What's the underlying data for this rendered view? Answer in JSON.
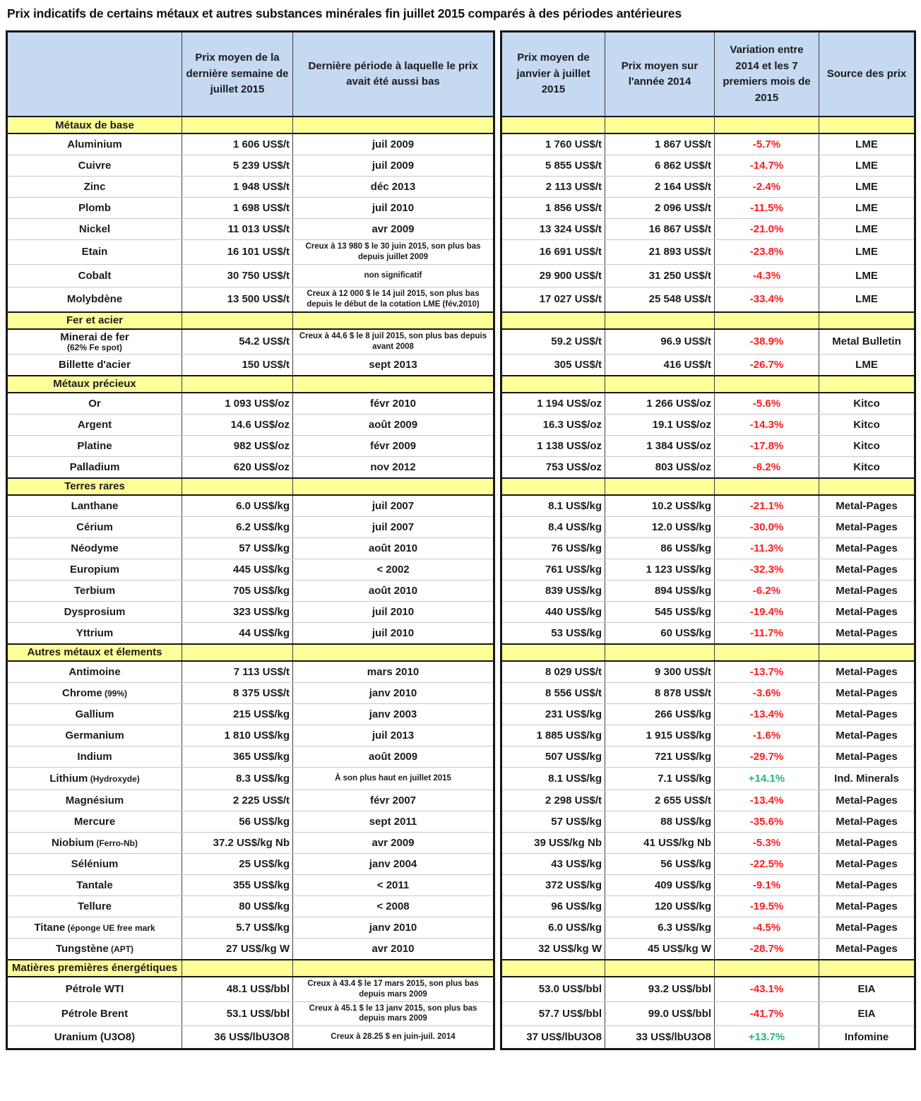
{
  "title": "Prix indicatifs de certains métaux et autres substances minérales fin juillet 2015 comparés à des périodes antérieures",
  "colors": {
    "header_blue": "#c5d9f1",
    "section_yellow": "#ffff99",
    "variation_negative_red": "#fe1b1d",
    "variation_positive_green": "#29b578"
  },
  "chart_data": {
    "type": "table",
    "title": "Prix indicatifs de certains métaux et autres substances minérales fin juillet 2015 comparés à des périodes antérieures",
    "columns": [
      "",
      "Prix moyen de la dernière semaine de juillet 2015",
      "Dernière période à laquelle le prix avait été aussi bas",
      "Prix moyen de janvier à juillet 2015",
      "Prix moyen sur l'année 2014",
      "Variation entre 2014 et les 7 premiers mois de 2015",
      "Source des prix"
    ],
    "sections": [
      {
        "name": "Métaux de base",
        "rows": [
          {
            "label": "Aluminium",
            "w": "1 606 US$/t",
            "period": "juil 2009",
            "p15": "1 760 US$/t",
            "p14": "1 867 US$/t",
            "var": "-5.7%",
            "pos": false,
            "src": "LME"
          },
          {
            "label": "Cuivre",
            "w": "5 239 US$/t",
            "period": "juil 2009",
            "p15": "5 855 US$/t",
            "p14": "6 862 US$/t",
            "var": "-14.7%",
            "pos": false,
            "src": "LME"
          },
          {
            "label": "Zinc",
            "w": "1 948 US$/t",
            "period": "déc 2013",
            "p15": "2 113 US$/t",
            "p14": "2 164 US$/t",
            "var": "-2.4%",
            "pos": false,
            "src": "LME"
          },
          {
            "label": "Plomb",
            "w": "1 698 US$/t",
            "period": "juil 2010",
            "p15": "1 856 US$/t",
            "p14": "2 096 US$/t",
            "var": "-11.5%",
            "pos": false,
            "src": "LME"
          },
          {
            "label": "Nickel",
            "w": "11 013 US$/t",
            "period": "avr 2009",
            "p15": "13 324 US$/t",
            "p14": "16 867 US$/t",
            "var": "-21.0%",
            "pos": false,
            "src": "LME"
          },
          {
            "label": "Etain",
            "w": "16 101 US$/t",
            "period": "Creux à 13 980 $ le 30 juin 2015, son plus bas depuis juillet 2009",
            "ps": true,
            "p15": "16 691 US$/t",
            "p14": "21 893 US$/t",
            "var": "-23.8%",
            "pos": false,
            "src": "LME"
          },
          {
            "label": "Cobalt",
            "w": "30 750 US$/t",
            "period": "non significatif",
            "ps": true,
            "p15": "29 900 US$/t",
            "p14": "31 250 US$/t",
            "var": "-4.3%",
            "pos": false,
            "src": "LME"
          },
          {
            "label": "Molybdène",
            "w": "13 500 US$/t",
            "period": "Creux à 12 000 $ le 14 juil 2015, son plus bas depuis le début de la cotation LME (fév.2010)",
            "ps": true,
            "p15": "17 027 US$/t",
            "p14": "25 548 US$/t",
            "var": "-33.4%",
            "pos": false,
            "src": "LME"
          }
        ]
      },
      {
        "name": "Fer et acier",
        "rows": [
          {
            "label": "Minerai de fer",
            "sub": "(62% Fe spot)",
            "w": "54.2 US$/t",
            "period": "Creux à 44.6 $ le 8 juil 2015, son plus bas depuis avant 2008",
            "ps": true,
            "p15": "59.2 US$/t",
            "p14": "96.9 US$/t",
            "var": "-38.9%",
            "pos": false,
            "src": "Metal Bulletin"
          },
          {
            "label": "Billette d'acier",
            "w": "150 US$/t",
            "period": "sept 2013",
            "p15": "305 US$/t",
            "p14": "416 US$/t",
            "var": "-26.7%",
            "pos": false,
            "src": "LME"
          }
        ]
      },
      {
        "name": "Métaux précieux",
        "rows": [
          {
            "label": "Or",
            "w": "1 093 US$/oz",
            "period": "févr 2010",
            "p15": "1 194 US$/oz",
            "p14": "1 266 US$/oz",
            "var": "-5.6%",
            "pos": false,
            "src": "Kitco"
          },
          {
            "label": "Argent",
            "w": "14.6 US$/oz",
            "period": "août 2009",
            "p15": "16.3 US$/oz",
            "p14": "19.1 US$/oz",
            "var": "-14.3%",
            "pos": false,
            "src": "Kitco"
          },
          {
            "label": "Platine",
            "w": "982 US$/oz",
            "period": "févr 2009",
            "p15": "1 138 US$/oz",
            "p14": "1 384 US$/oz",
            "var": "-17.8%",
            "pos": false,
            "src": "Kitco"
          },
          {
            "label": "Palladium",
            "w": "620 US$/oz",
            "period": "nov 2012",
            "p15": "753 US$/oz",
            "p14": "803 US$/oz",
            "var": "-6.2%",
            "pos": false,
            "src": "Kitco"
          }
        ]
      },
      {
        "name": "Terres rares",
        "rows": [
          {
            "label": "Lanthane",
            "w": "6.0 US$/kg",
            "period": "juil 2007",
            "p15": "8.1 US$/kg",
            "p14": "10.2 US$/kg",
            "var": "-21.1%",
            "pos": false,
            "src": "Metal-Pages"
          },
          {
            "label": "Cérium",
            "w": "6.2 US$/kg",
            "period": "juil 2007",
            "p15": "8.4 US$/kg",
            "p14": "12.0 US$/kg",
            "var": "-30.0%",
            "pos": false,
            "src": "Metal-Pages"
          },
          {
            "label": "Néodyme",
            "w": "57 US$/kg",
            "period": "août 2010",
            "p15": "76 US$/kg",
            "p14": "86 US$/kg",
            "var": "-11.3%",
            "pos": false,
            "src": "Metal-Pages"
          },
          {
            "label": "Europium",
            "w": "445 US$/kg",
            "period": "< 2002",
            "p15": "761 US$/kg",
            "p14": "1 123 US$/kg",
            "var": "-32.3%",
            "pos": false,
            "src": "Metal-Pages"
          },
          {
            "label": "Terbium",
            "w": "705 US$/kg",
            "period": "août 2010",
            "p15": "839 US$/kg",
            "p14": "894 US$/kg",
            "var": "-6.2%",
            "pos": false,
            "src": "Metal-Pages"
          },
          {
            "label": "Dysprosium",
            "w": "323 US$/kg",
            "period": "juil 2010",
            "p15": "440 US$/kg",
            "p14": "545 US$/kg",
            "var": "-19.4%",
            "pos": false,
            "src": "Metal-Pages"
          },
          {
            "label": "Yttrium",
            "w": "44 US$/kg",
            "period": "juil 2010",
            "p15": "53 US$/kg",
            "p14": "60 US$/kg",
            "var": "-11.7%",
            "pos": false,
            "src": "Metal-Pages"
          }
        ]
      },
      {
        "name": "Autres métaux et élements",
        "rows": [
          {
            "label": "Antimoine",
            "w": "7 113 US$/t",
            "period": "mars 2010",
            "p15": "8 029 US$/t",
            "p14": "9 300 US$/t",
            "var": "-13.7%",
            "pos": false,
            "src": "Metal-Pages"
          },
          {
            "label": "Chrome",
            "note": "(99%)",
            "w": "8 375 US$/t",
            "period": "janv 2010",
            "p15": "8 556 US$/t",
            "p14": "8 878 US$/t",
            "var": "-3.6%",
            "pos": false,
            "src": "Metal-Pages"
          },
          {
            "label": "Gallium",
            "w": "215 US$/kg",
            "period": "janv 2003",
            "p15": "231 US$/kg",
            "p14": "266 US$/kg",
            "var": "-13.4%",
            "pos": false,
            "src": "Metal-Pages"
          },
          {
            "label": "Germanium",
            "w": "1 810 US$/kg",
            "period": "juil 2013",
            "p15": "1 885 US$/kg",
            "p14": "1 915 US$/kg",
            "var": "-1.6%",
            "pos": false,
            "src": "Metal-Pages"
          },
          {
            "label": "Indium",
            "w": "365 US$/kg",
            "period": "août 2009",
            "p15": "507 US$/kg",
            "p14": "721 US$/kg",
            "var": "-29.7%",
            "pos": false,
            "src": "Metal-Pages"
          },
          {
            "label": "Lithium",
            "note": "(Hydroxyde)",
            "w": "8.3 US$/kg",
            "period": "À son plus haut en juillet 2015",
            "ps": true,
            "p15": "8.1 US$/kg",
            "p14": "7.1 US$/kg",
            "var": "+14.1%",
            "pos": true,
            "src": "Ind. Minerals"
          },
          {
            "label": "Magnésium",
            "w": "2 225 US$/t",
            "period": "févr 2007",
            "p15": "2 298 US$/t",
            "p14": "2 655 US$/t",
            "var": "-13.4%",
            "pos": false,
            "src": "Metal-Pages"
          },
          {
            "label": "Mercure",
            "w": "56 US$/kg",
            "period": "sept 2011",
            "p15": "57 US$/kg",
            "p14": "88 US$/kg",
            "var": "-35.6%",
            "pos": false,
            "src": "Metal-Pages"
          },
          {
            "label": "Niobium",
            "note": "(Ferro-Nb)",
            "w": "37.2 US$/kg Nb",
            "period": "avr 2009",
            "p15": "39 US$/kg Nb",
            "p14": "41 US$/kg Nb",
            "var": "-5.3%",
            "pos": false,
            "src": "Metal-Pages"
          },
          {
            "label": "Sélénium",
            "w": "25 US$/kg",
            "period": "janv 2004",
            "p15": "43 US$/kg",
            "p14": "56 US$/kg",
            "var": "-22.5%",
            "pos": false,
            "src": "Metal-Pages"
          },
          {
            "label": "Tantale",
            "w": "355 US$/kg",
            "period": "< 2011",
            "p15": "372 US$/kg",
            "p14": "409 US$/kg",
            "var": "-9.1%",
            "pos": false,
            "src": "Metal-Pages"
          },
          {
            "label": "Tellure",
            "w": "80 US$/kg",
            "period": "< 2008",
            "p15": "96 US$/kg",
            "p14": "120 US$/kg",
            "var": "-19.5%",
            "pos": false,
            "src": "Metal-Pages"
          },
          {
            "label": "Titane",
            "note": "(éponge UE free mark",
            "w": "5.7 US$/kg",
            "period": "janv 2010",
            "p15": "6.0 US$/kg",
            "p14": "6.3 US$/kg",
            "var": "-4.5%",
            "pos": false,
            "src": "Metal-Pages"
          },
          {
            "label": "Tungstène",
            "note": "(APT)",
            "w": "27 US$/kg W",
            "period": "avr 2010",
            "p15": "32 US$/kg W",
            "p14": "45 US$/kg W",
            "var": "-28.7%",
            "pos": false,
            "src": "Metal-Pages"
          }
        ]
      },
      {
        "name": "Matières premières énergétiques",
        "rows": [
          {
            "label": "Pétrole WTI",
            "w": "48.1 US$/bbl",
            "period": "Creux à 43.4 $ le 17 mars 2015, son plus bas depuis mars 2009",
            "ps": true,
            "p15": "53.0 US$/bbl",
            "p14": "93.2 US$/bbl",
            "var": "-43.1%",
            "pos": false,
            "src": "EIA"
          },
          {
            "label": "Pétrole Brent",
            "w": "53.1 US$/bbl",
            "period": "Creux à 45.1 $ le 13 janv 2015, son plus bas depuis mars 2009",
            "ps": true,
            "p15": "57.7 US$/bbl",
            "p14": "99.0 US$/bbl",
            "var": "-41.7%",
            "pos": false,
            "src": "EIA"
          },
          {
            "label": "Uranium (U3O8)",
            "w": "36 US$/lbU3O8",
            "period": "Creux à 28.25 $ en juin-juil. 2014",
            "ps": true,
            "p15": "37 US$/lbU3O8",
            "p14": "33 US$/lbU3O8",
            "var": "+13.7%",
            "pos": true,
            "src": "Infomine"
          }
        ]
      }
    ]
  }
}
